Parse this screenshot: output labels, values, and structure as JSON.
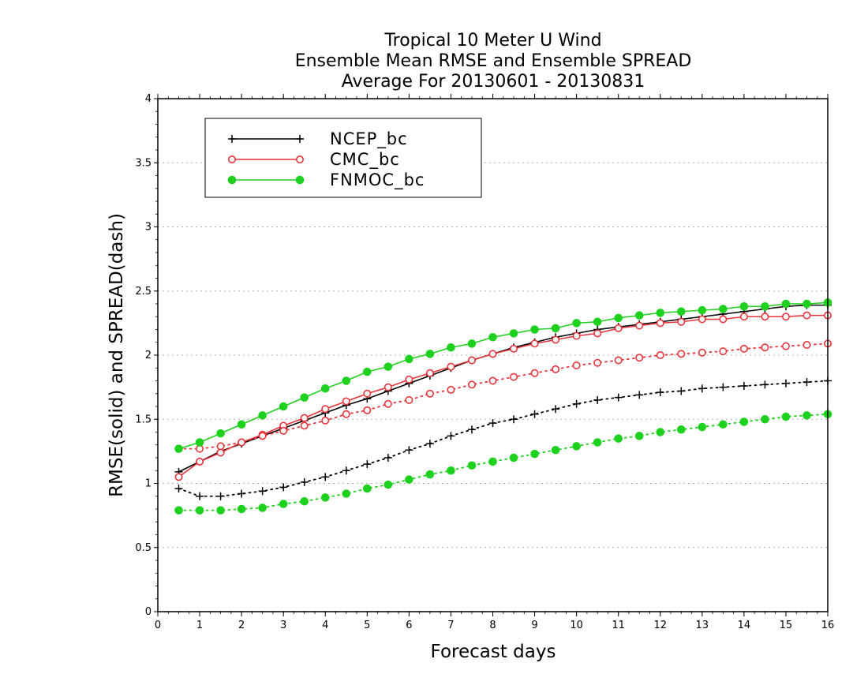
{
  "title_lines": [
    "Tropical 10 Meter U Wind",
    "Ensemble Mean RMSE and Ensemble SPREAD",
    "Average For 20130601 - 20130831"
  ],
  "colors": {
    "NCEP_bc": "#000000",
    "CMC_bc": "#e8343a",
    "FNMOC_bc": "#1fd11f",
    "grid": "#b0b0b0",
    "frame": "#000000"
  },
  "chart_data": {
    "type": "line",
    "xlabel": "Forecast days",
    "ylabel": "RMSE(solid) and SPREAD(dash)",
    "xlim": [
      0,
      16
    ],
    "ylim": [
      0,
      4
    ],
    "xticks": [
      "0",
      "1",
      "2",
      "3",
      "4",
      "5",
      "6",
      "7",
      "8",
      "9",
      "10",
      "11",
      "12",
      "13",
      "14",
      "15",
      "16"
    ],
    "yticks": [
      "0",
      "0.5",
      "1",
      "1.5",
      "2",
      "2.5",
      "3",
      "3.5",
      "4"
    ],
    "grid": "horizontal dotted",
    "legend_position": "top-left",
    "x": [
      0.5,
      1,
      1.5,
      2,
      2.5,
      3,
      3.5,
      4,
      4.5,
      5,
      5.5,
      6,
      6.5,
      7,
      7.5,
      8,
      8.5,
      9,
      9.5,
      10,
      10.5,
      11,
      11.5,
      12,
      12.5,
      13,
      13.5,
      14,
      14.5,
      15,
      15.5,
      16
    ],
    "series": [
      {
        "name": "NCEP_bc",
        "marker": "plus",
        "rmse": [
          1.09,
          1.17,
          1.25,
          1.31,
          1.37,
          1.43,
          1.49,
          1.55,
          1.61,
          1.66,
          1.72,
          1.78,
          1.84,
          1.9,
          1.96,
          2.01,
          2.06,
          2.1,
          2.14,
          2.17,
          2.2,
          2.22,
          2.24,
          2.26,
          2.28,
          2.3,
          2.32,
          2.34,
          2.36,
          2.38,
          2.39,
          2.39
        ],
        "spread": [
          0.96,
          0.9,
          0.9,
          0.92,
          0.94,
          0.97,
          1.01,
          1.05,
          1.1,
          1.15,
          1.2,
          1.26,
          1.31,
          1.37,
          1.42,
          1.47,
          1.5,
          1.54,
          1.58,
          1.62,
          1.65,
          1.67,
          1.69,
          1.71,
          1.72,
          1.74,
          1.75,
          1.76,
          1.77,
          1.78,
          1.79,
          1.8
        ]
      },
      {
        "name": "CMC_bc",
        "marker": "circle",
        "rmse": [
          1.05,
          1.17,
          1.24,
          1.32,
          1.38,
          1.45,
          1.51,
          1.58,
          1.64,
          1.7,
          1.75,
          1.81,
          1.86,
          1.91,
          1.96,
          2.01,
          2.05,
          2.09,
          2.12,
          2.15,
          2.17,
          2.21,
          2.23,
          2.25,
          2.26,
          2.28,
          2.28,
          2.3,
          2.3,
          2.3,
          2.31,
          2.31
        ],
        "spread": [
          1.27,
          1.27,
          1.29,
          1.32,
          1.37,
          1.41,
          1.45,
          1.49,
          1.54,
          1.57,
          1.62,
          1.65,
          1.7,
          1.73,
          1.77,
          1.8,
          1.83,
          1.86,
          1.89,
          1.92,
          1.94,
          1.96,
          1.98,
          2.0,
          2.01,
          2.02,
          2.03,
          2.05,
          2.06,
          2.07,
          2.08,
          2.09
        ]
      },
      {
        "name": "FNMOC_bc",
        "marker": "dot",
        "rmse": [
          1.27,
          1.32,
          1.39,
          1.46,
          1.53,
          1.6,
          1.67,
          1.74,
          1.8,
          1.87,
          1.91,
          1.97,
          2.01,
          2.06,
          2.09,
          2.14,
          2.17,
          2.2,
          2.21,
          2.25,
          2.26,
          2.29,
          2.31,
          2.33,
          2.34,
          2.35,
          2.36,
          2.38,
          2.38,
          2.4,
          2.4,
          2.41
        ],
        "spread": [
          0.79,
          0.79,
          0.79,
          0.8,
          0.81,
          0.84,
          0.86,
          0.89,
          0.92,
          0.96,
          0.99,
          1.03,
          1.07,
          1.1,
          1.14,
          1.17,
          1.2,
          1.23,
          1.26,
          1.29,
          1.32,
          1.35,
          1.37,
          1.4,
          1.42,
          1.44,
          1.46,
          1.48,
          1.5,
          1.52,
          1.53,
          1.54
        ]
      }
    ]
  }
}
